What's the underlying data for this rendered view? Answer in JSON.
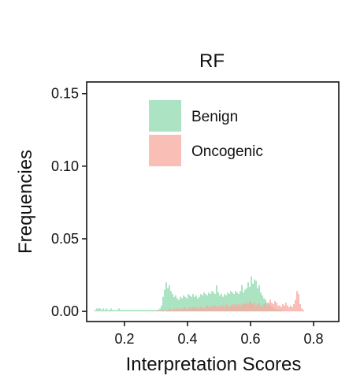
{
  "chart_data": {
    "type": "histogram",
    "title": "RF",
    "xlabel": "Interpretation Scores",
    "ylabel": "Frequencies",
    "xlim": [
      0.08,
      0.88
    ],
    "ylim": [
      -0.007,
      0.158
    ],
    "x_ticks": [
      0.2,
      0.4,
      0.6,
      0.8
    ],
    "x_tick_labels": [
      "0.2",
      "0.4",
      "0.6",
      "0.8"
    ],
    "y_ticks": [
      0.0,
      0.05,
      0.1,
      0.15
    ],
    "y_tick_labels": [
      "0.00",
      "0.05",
      "0.10",
      "0.15"
    ],
    "grid": false,
    "legend_position": "top-left inside",
    "bin_width": 0.005,
    "bin_start": 0.1,
    "series": [
      {
        "name": "Benign",
        "color": "#7fd4a3",
        "opacity": 0.65,
        "bin_start": 0.1,
        "values": [
          0.0,
          0.001,
          0.002,
          0.002,
          0.002,
          0.001,
          0.002,
          0.001,
          0.002,
          0.001,
          0.001,
          0.002,
          0.001,
          0.001,
          0.001,
          0.001,
          0.002,
          0.001,
          0.001,
          0.001,
          0.001,
          0.001,
          0.001,
          0.001,
          0.001,
          0.001,
          0.001,
          0.001,
          0.001,
          0.001,
          0.001,
          0.001,
          0.001,
          0.001,
          0.001,
          0.001,
          0.001,
          0.001,
          0.001,
          0.001,
          0.001,
          0.001,
          0.002,
          0.004,
          0.01,
          0.015,
          0.02,
          0.016,
          0.018,
          0.014,
          0.012,
          0.01,
          0.011,
          0.009,
          0.008,
          0.01,
          0.009,
          0.011,
          0.01,
          0.009,
          0.012,
          0.011,
          0.01,
          0.012,
          0.01,
          0.011,
          0.009,
          0.01,
          0.012,
          0.011,
          0.013,
          0.012,
          0.011,
          0.013,
          0.012,
          0.014,
          0.013,
          0.012,
          0.018,
          0.013,
          0.011,
          0.012,
          0.01,
          0.012,
          0.011,
          0.013,
          0.012,
          0.014,
          0.013,
          0.012,
          0.014,
          0.013,
          0.012,
          0.014,
          0.018,
          0.013,
          0.015,
          0.016,
          0.02,
          0.017,
          0.024,
          0.019,
          0.022,
          0.021,
          0.016,
          0.018,
          0.013,
          0.011,
          0.009,
          0.008,
          0.006,
          0.005,
          0.004,
          0.003,
          0.002,
          0.002,
          0.001,
          0.001,
          0.001,
          0.001,
          0.0,
          0.0,
          0.0,
          0.0
        ]
      },
      {
        "name": "Oncogenic",
        "color": "#f7a89c",
        "opacity": 0.75,
        "bin_start": 0.3,
        "values": [
          0.0,
          0.001,
          0.0,
          0.001,
          0.001,
          0.0,
          0.001,
          0.001,
          0.002,
          0.001,
          0.001,
          0.002,
          0.001,
          0.002,
          0.002,
          0.001,
          0.002,
          0.002,
          0.003,
          0.002,
          0.002,
          0.003,
          0.002,
          0.003,
          0.003,
          0.002,
          0.003,
          0.002,
          0.003,
          0.003,
          0.002,
          0.003,
          0.004,
          0.003,
          0.004,
          0.003,
          0.004,
          0.004,
          0.003,
          0.004,
          0.003,
          0.004,
          0.004,
          0.003,
          0.005,
          0.004,
          0.003,
          0.004,
          0.005,
          0.004,
          0.005,
          0.004,
          0.005,
          0.004,
          0.005,
          0.006,
          0.005,
          0.006,
          0.005,
          0.007,
          0.006,
          0.005,
          0.006,
          0.004,
          0.005,
          0.006,
          0.004,
          0.003,
          0.005,
          0.006,
          0.004,
          0.006,
          0.008,
          0.006,
          0.005,
          0.007,
          0.006,
          0.004,
          0.004,
          0.003,
          0.005,
          0.004,
          0.006,
          0.004,
          0.003,
          0.004,
          0.003,
          0.005,
          0.008,
          0.014,
          0.012,
          0.005,
          0.002,
          0.001
        ]
      }
    ]
  }
}
